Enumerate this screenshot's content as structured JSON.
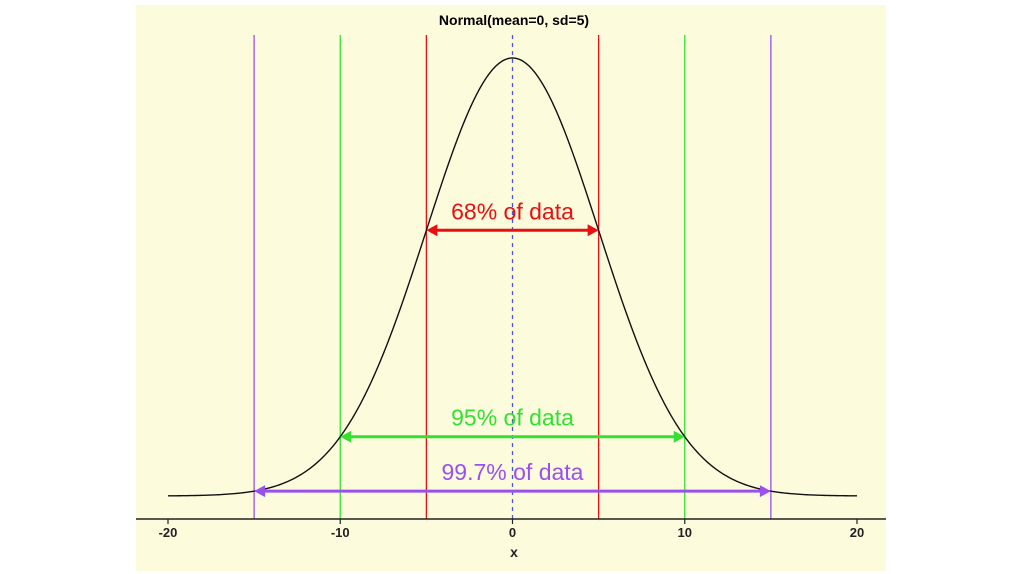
{
  "chart_data": {
    "type": "line",
    "title": "Normal(mean=0, sd=5)",
    "xlabel": "x",
    "ylabel": "",
    "xlim": [
      -20,
      20
    ],
    "x_ticks": [
      -20,
      -10,
      0,
      10,
      20
    ],
    "x_tick_labels": [
      "-20",
      "-10",
      "0",
      "10",
      "20"
    ],
    "distribution": {
      "mean": 0,
      "sd": 5
    },
    "series": [
      {
        "x": [
          -20,
          -18,
          -16,
          -15,
          -14,
          -12,
          -10,
          -8,
          -6,
          -5,
          -4,
          -2,
          0,
          2,
          4,
          5,
          6,
          8,
          10,
          12,
          14,
          15,
          16,
          18,
          20
        ],
        "y": [
          2.68e-05,
          0.000122,
          0.000477,
          0.000886,
          0.00158,
          0.00448,
          0.0108,
          0.0222,
          0.0388,
          0.0484,
          0.0579,
          0.0737,
          0.0798,
          0.0737,
          0.0579,
          0.0484,
          0.0388,
          0.0222,
          0.0108,
          0.00448,
          0.00158,
          0.000886,
          0.000477,
          0.000122,
          2.68e-05
        ]
      }
    ],
    "reference_lines": [
      {
        "x": 0,
        "color": "#4a55e0",
        "style": "dashed"
      },
      {
        "x": -5,
        "color": "#e81010",
        "style": "solid"
      },
      {
        "x": 5,
        "color": "#e81010",
        "style": "solid"
      },
      {
        "x": -10,
        "color": "#33e033",
        "style": "solid"
      },
      {
        "x": 10,
        "color": "#33e033",
        "style": "solid"
      },
      {
        "x": -15,
        "color": "#9a50f0",
        "style": "solid"
      },
      {
        "x": 15,
        "color": "#9a50f0",
        "style": "solid"
      }
    ],
    "annotations": [
      {
        "text": "68% of data",
        "from": -5,
        "to": 5,
        "y": 0.0484,
        "color": "#e81010"
      },
      {
        "text": "95% of data",
        "from": -10,
        "to": 10,
        "y": 0.0108,
        "color": "#33e033"
      },
      {
        "text": "99.7% of data",
        "from": -15,
        "to": 15,
        "y": 0.000886,
        "color": "#9a50f0"
      }
    ],
    "grid": false,
    "legend": "none"
  }
}
